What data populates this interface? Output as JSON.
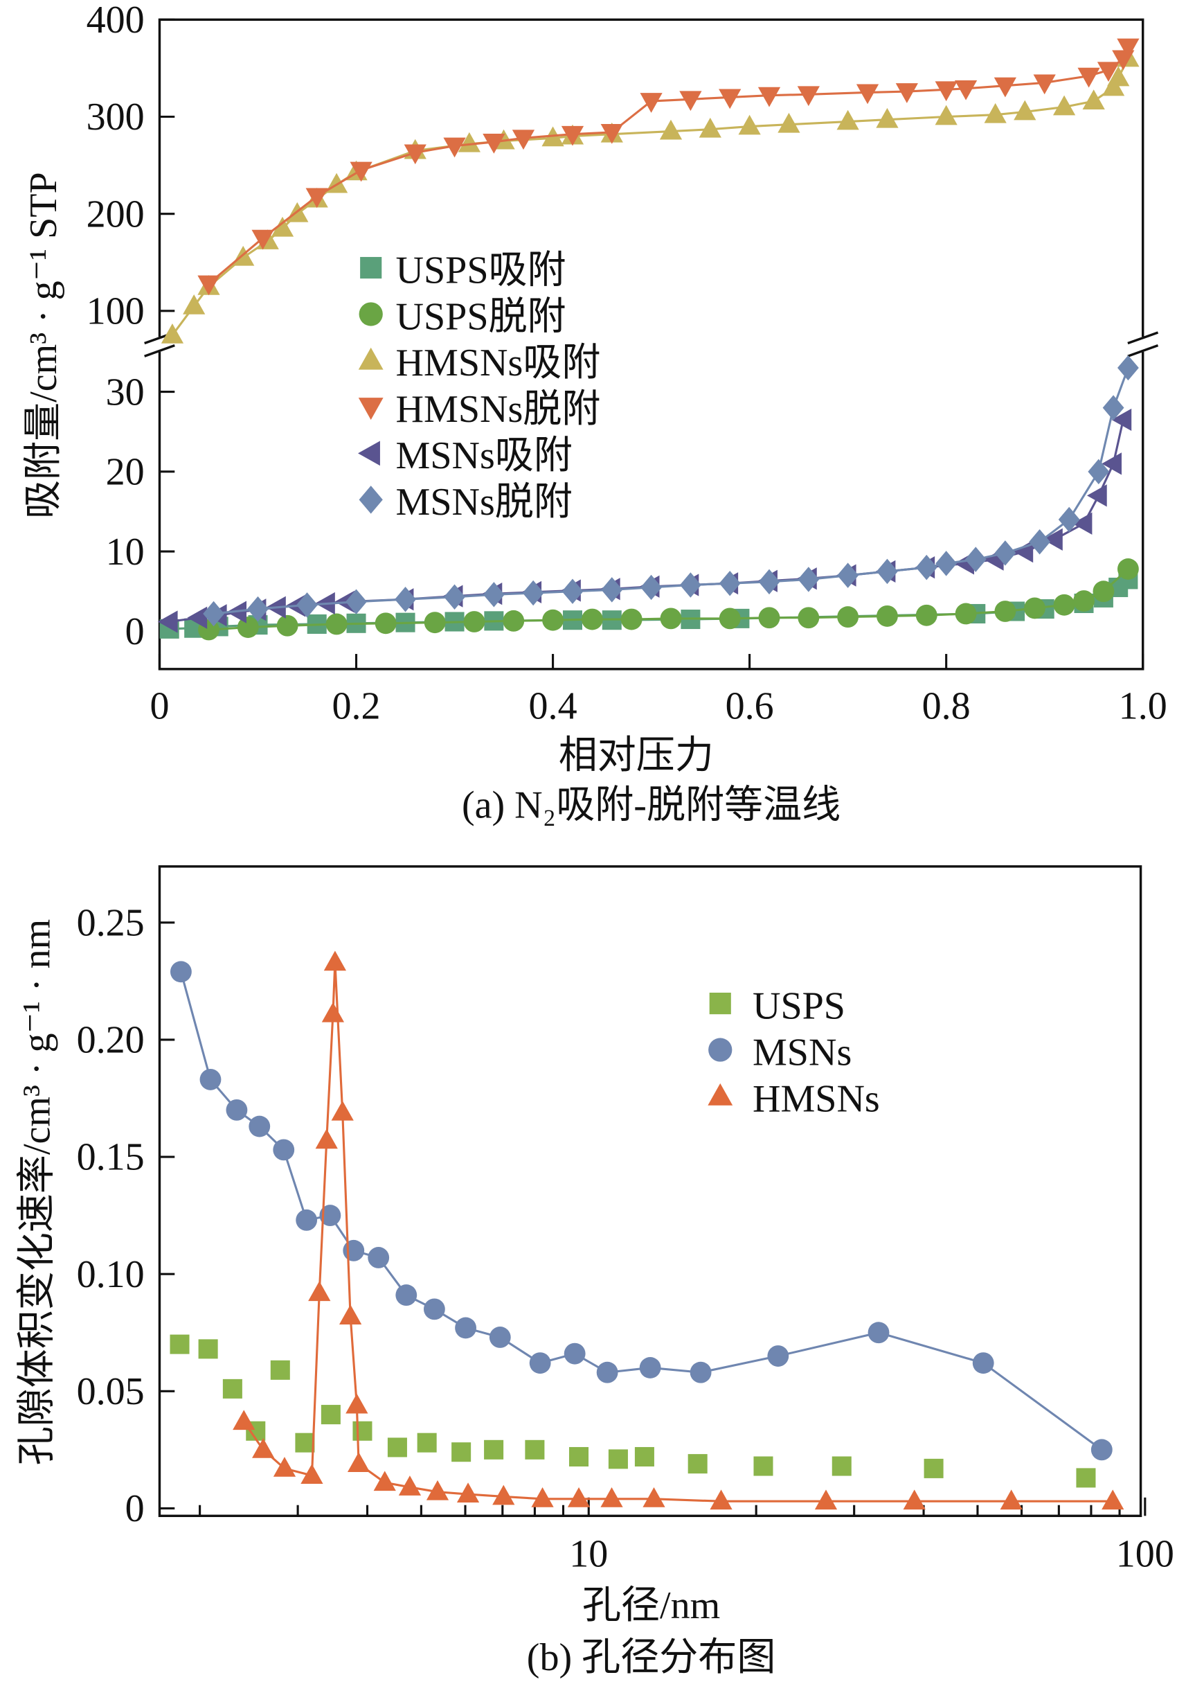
{
  "chart_data": [
    {
      "type": "line",
      "title": "(a) N₂吸附-脱附等温线",
      "xlabel": "相对压力",
      "ylabel": "吸附量/cm³ · g⁻¹ STP",
      "xlim": [
        0,
        1.0
      ],
      "ylim_lower": [
        -5,
        35.8
      ],
      "ylim_upper": [
        65,
        400
      ],
      "axis_break": true,
      "x_ticks": [
        "0",
        "0.2",
        "0.4",
        "0.6",
        "0.8",
        "1.0"
      ],
      "y_ticks_lower": [
        "0",
        "10",
        "20",
        "30"
      ],
      "y_ticks_upper": [
        "100",
        "200",
        "300",
        "400"
      ],
      "legend_position": "center-left",
      "series": [
        {
          "name": "USPS吸附",
          "marker": "square",
          "color": "#5aa07a",
          "x": [
            0.01,
            0.035,
            0.06,
            0.1,
            0.16,
            0.2,
            0.25,
            0.3,
            0.34,
            0.42,
            0.46,
            0.54,
            0.59,
            0.83,
            0.87,
            0.9,
            0.94,
            0.96,
            0.975,
            0.985
          ],
          "y": [
            0.3,
            0.4,
            0.6,
            0.8,
            0.9,
            1.0,
            1.1,
            1.2,
            1.3,
            1.4,
            1.4,
            1.5,
            1.6,
            2.2,
            2.5,
            2.8,
            3.5,
            4.2,
            5.5,
            6.5
          ]
        },
        {
          "name": "USPS脱附",
          "marker": "circle",
          "color": "#6aa544",
          "x": [
            0.05,
            0.09,
            0.13,
            0.18,
            0.23,
            0.28,
            0.32,
            0.36,
            0.4,
            0.44,
            0.48,
            0.52,
            0.58,
            0.62,
            0.66,
            0.7,
            0.74,
            0.78,
            0.82,
            0.86,
            0.89,
            0.92,
            0.94,
            0.96,
            0.985
          ],
          "y": [
            0.2,
            0.5,
            0.7,
            0.9,
            1.0,
            1.1,
            1.2,
            1.3,
            1.4,
            1.5,
            1.5,
            1.6,
            1.6,
            1.7,
            1.7,
            1.8,
            1.9,
            2.0,
            2.2,
            2.5,
            2.9,
            3.3,
            3.8,
            5.0,
            7.8
          ]
        },
        {
          "name": "HMSNs吸附",
          "marker": "triangle-up",
          "color": "#c8b45a",
          "x": [
            0.013,
            0.035,
            0.05,
            0.085,
            0.11,
            0.125,
            0.14,
            0.16,
            0.18,
            0.2,
            0.26,
            0.315,
            0.35,
            0.4,
            0.42,
            0.46,
            0.52,
            0.56,
            0.6,
            0.64,
            0.7,
            0.74,
            0.8,
            0.85,
            0.88,
            0.92,
            0.95,
            0.97,
            0.975,
            0.985
          ],
          "y": [
            75,
            105,
            125,
            155,
            172,
            185,
            200,
            215,
            230,
            243,
            265,
            272,
            275,
            278,
            280,
            282,
            285,
            287,
            290,
            292,
            295,
            297,
            300,
            302,
            305,
            310,
            316,
            330,
            340,
            360
          ]
        },
        {
          "name": "HMSNs脱附",
          "marker": "triangle-down",
          "color": "#dc6e44",
          "x": [
            0.05,
            0.105,
            0.16,
            0.205,
            0.26,
            0.3,
            0.34,
            0.37,
            0.42,
            0.46,
            0.5,
            0.54,
            0.58,
            0.62,
            0.66,
            0.72,
            0.76,
            0.8,
            0.82,
            0.86,
            0.9,
            0.945,
            0.965,
            0.98,
            0.985
          ],
          "y": [
            128,
            175,
            218,
            245,
            263,
            270,
            274,
            278,
            282,
            284,
            316,
            318,
            320,
            322,
            323,
            325,
            326,
            328,
            329,
            332,
            335,
            342,
            348,
            360,
            372
          ]
        },
        {
          "name": "MSNs吸附",
          "marker": "triangle-left",
          "color": "#5a5490",
          "x": [
            0.01,
            0.04,
            0.06,
            0.08,
            0.1,
            0.12,
            0.14,
            0.17,
            0.19,
            0.25,
            0.3,
            0.34,
            0.38,
            0.42,
            0.46,
            0.5,
            0.54,
            0.58,
            0.62,
            0.66,
            0.7,
            0.74,
            0.78,
            0.82,
            0.85,
            0.88,
            0.91,
            0.94,
            0.955,
            0.97,
            0.98
          ],
          "y": [
            1.2,
            1.7,
            2.0,
            2.4,
            2.7,
            3.0,
            3.2,
            3.5,
            3.7,
            4.0,
            4.4,
            4.7,
            4.9,
            5.1,
            5.3,
            5.6,
            5.8,
            6.0,
            6.3,
            6.6,
            7.0,
            7.5,
            8.0,
            8.5,
            9.0,
            10.0,
            11.5,
            13.5,
            17,
            21,
            26.5
          ]
        },
        {
          "name": "MSNs脱附",
          "marker": "diamond",
          "color": "#6f88b0",
          "x": [
            0.055,
            0.1,
            0.15,
            0.2,
            0.25,
            0.3,
            0.34,
            0.38,
            0.42,
            0.46,
            0.5,
            0.54,
            0.58,
            0.62,
            0.66,
            0.7,
            0.74,
            0.78,
            0.8,
            0.83,
            0.86,
            0.895,
            0.925,
            0.955,
            0.97,
            0.985
          ],
          "y": [
            2.2,
            2.8,
            3.3,
            3.7,
            4.0,
            4.3,
            4.6,
            4.8,
            5.0,
            5.2,
            5.5,
            5.8,
            6.0,
            6.2,
            6.5,
            7.0,
            7.5,
            8.0,
            8.5,
            9.0,
            9.8,
            11.2,
            14,
            20,
            28,
            33
          ]
        }
      ]
    },
    {
      "type": "line",
      "title": "(b) 孔径分布图",
      "xlabel": "孔径/nm",
      "ylabel": "孔隙体积变化速率/cm³ · g⁻¹ · nm",
      "xscale": "log",
      "xlim": [
        1.69,
        98
      ],
      "ylim": [
        -0.0035,
        0.274
      ],
      "x_ticks": [
        "10",
        "100"
      ],
      "y_ticks": [
        "0",
        "0.05",
        "0.10",
        "0.15",
        "0.20",
        "0.25"
      ],
      "legend_position": "top-right",
      "series": [
        {
          "name": "USPS",
          "marker": "square",
          "color": "#8ab44a",
          "line": false,
          "x": [
            1.84,
            2.07,
            2.29,
            2.52,
            2.79,
            3.09,
            3.44,
            3.92,
            4.53,
            5.12,
            5.9,
            6.75,
            8.0,
            9.6,
            11.3,
            12.6,
            15.7,
            20.6,
            28.5,
            41.7,
            78.3
          ],
          "y": [
            0.07,
            0.068,
            0.051,
            0.033,
            0.059,
            0.028,
            0.04,
            0.033,
            0.026,
            0.028,
            0.024,
            0.025,
            0.025,
            0.022,
            0.021,
            0.022,
            0.019,
            0.018,
            0.018,
            0.017,
            0.013
          ]
        },
        {
          "name": "MSNs",
          "marker": "circle",
          "color": "#6f86b0",
          "line": true,
          "x": [
            1.85,
            2.09,
            2.33,
            2.56,
            2.83,
            3.11,
            3.43,
            3.78,
            4.19,
            4.7,
            5.28,
            6.01,
            6.93,
            8.18,
            9.44,
            10.8,
            12.9,
            15.9,
            21.9,
            33.2,
            51.2,
            83.6
          ],
          "y": [
            0.229,
            0.183,
            0.17,
            0.163,
            0.153,
            0.123,
            0.125,
            0.11,
            0.107,
            0.091,
            0.085,
            0.077,
            0.073,
            0.062,
            0.066,
            0.058,
            0.06,
            0.058,
            0.065,
            0.075,
            0.062,
            0.025
          ]
        },
        {
          "name": "HMSNs",
          "marker": "triangle-up",
          "color": "#e06a3a",
          "line": true,
          "x": [
            2.4,
            2.6,
            2.84,
            3.18,
            3.28,
            3.38,
            3.47,
            3.5,
            3.61,
            3.73,
            3.83,
            3.86,
            4.3,
            4.77,
            5.35,
            6.07,
            7.03,
            8.26,
            9.6,
            11.0,
            13.1,
            17.3,
            26.7,
            38.5,
            57.5,
            87.5
          ],
          "y": [
            0.037,
            0.025,
            0.017,
            0.014,
            0.092,
            0.157,
            0.211,
            0.233,
            0.169,
            0.082,
            0.044,
            0.019,
            0.011,
            0.009,
            0.007,
            0.006,
            0.005,
            0.004,
            0.004,
            0.004,
            0.004,
            0.003,
            0.003,
            0.003,
            0.003,
            0.003
          ]
        }
      ]
    }
  ]
}
